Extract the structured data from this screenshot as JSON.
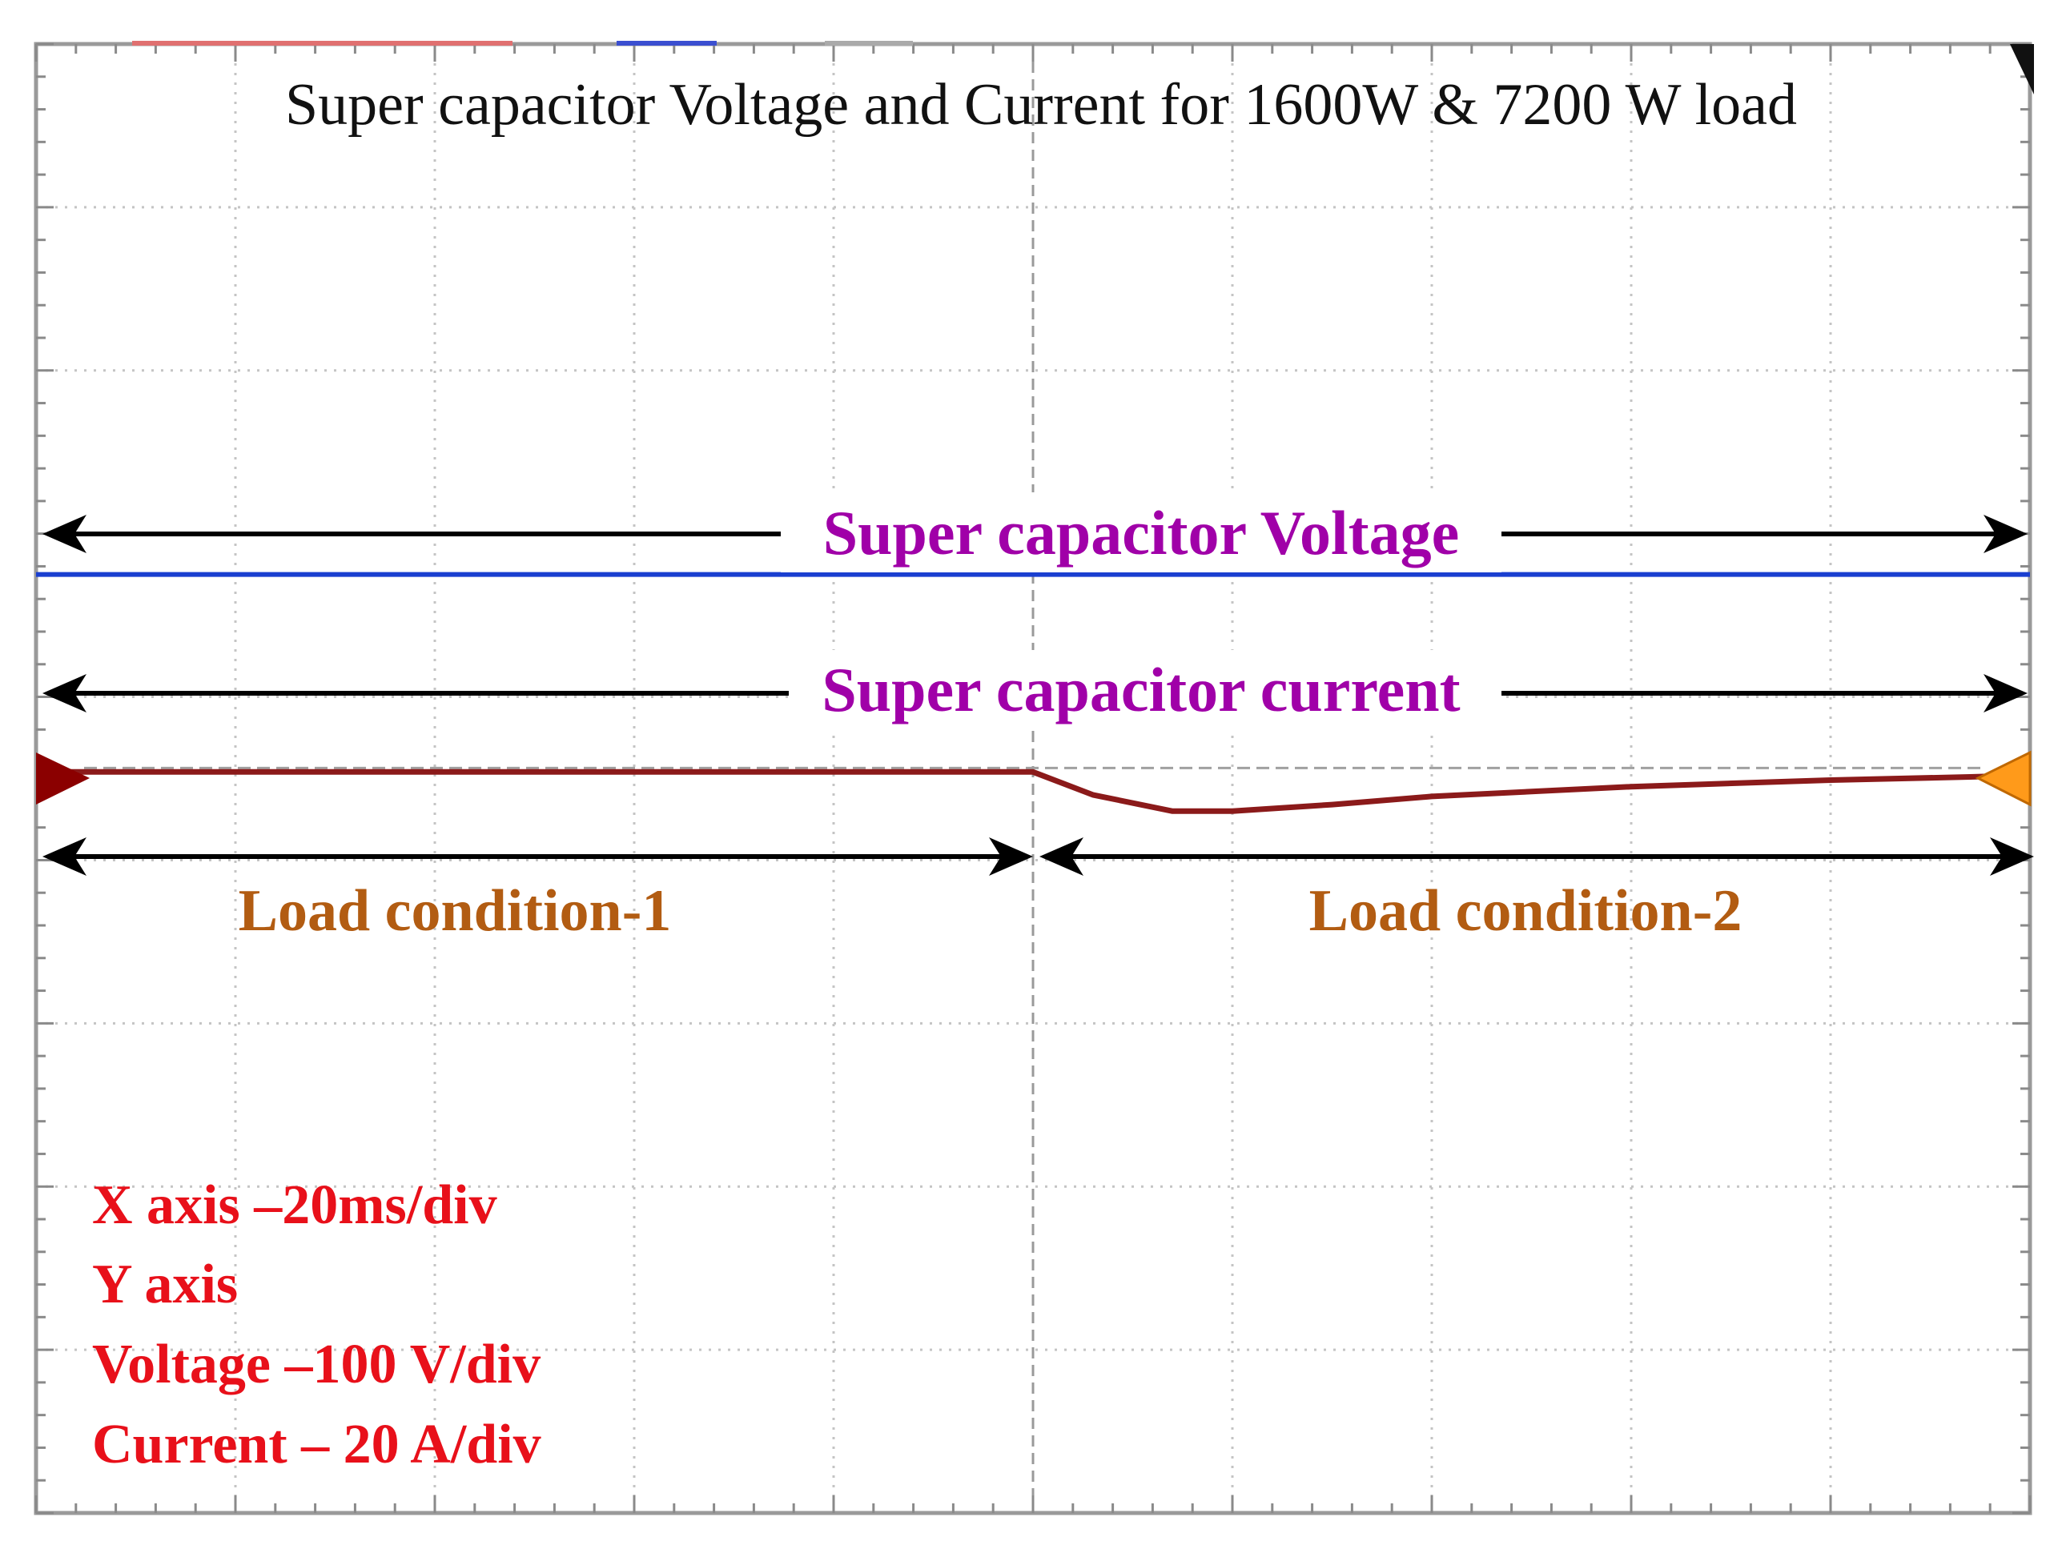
{
  "chart_data": {
    "type": "line",
    "title": "Super capacitor Voltage and Current for 1600W & 7200 W load",
    "grid": true,
    "divisions": {
      "x": 10,
      "y": 9
    },
    "xlim_div": [
      0,
      10
    ],
    "ylim_div": [
      0,
      9
    ],
    "series": [
      {
        "name": "Super capacitor Voltage",
        "color": "#1a3fd0",
        "x_div": [
          0,
          10
        ],
        "y_div": [
          5.75,
          5.75
        ]
      },
      {
        "name": "Super capacitor current",
        "color": "#8b1a1a",
        "x_div": [
          0,
          5.0,
          5.3,
          5.7,
          6.0,
          6.5,
          7.0,
          8.0,
          9.0,
          9.7,
          10
        ],
        "y_div": [
          4.54,
          4.54,
          4.4,
          4.3,
          4.3,
          4.34,
          4.39,
          4.45,
          4.49,
          4.51,
          4.52
        ]
      }
    ],
    "annotations": {
      "voltage_label": "Super capacitor Voltage",
      "current_label": "Super capacitor current",
      "load1_label": "Load condition-1",
      "load2_label": "Load condition-2",
      "load_change_x_div": 5.0,
      "notes": [
        "X axis –20ms/div",
        "Y axis",
        "Voltage –100 V/div",
        "Current – 20 A/div"
      ]
    },
    "colors": {
      "voltage": "#1a3fd0",
      "current": "#8b1a1a",
      "label_purple": "#a000a8",
      "label_brown": "#b25c12",
      "notes_red": "#e8101a",
      "marker_left": "#8b0000",
      "marker_right": "#ff9a1a"
    }
  }
}
